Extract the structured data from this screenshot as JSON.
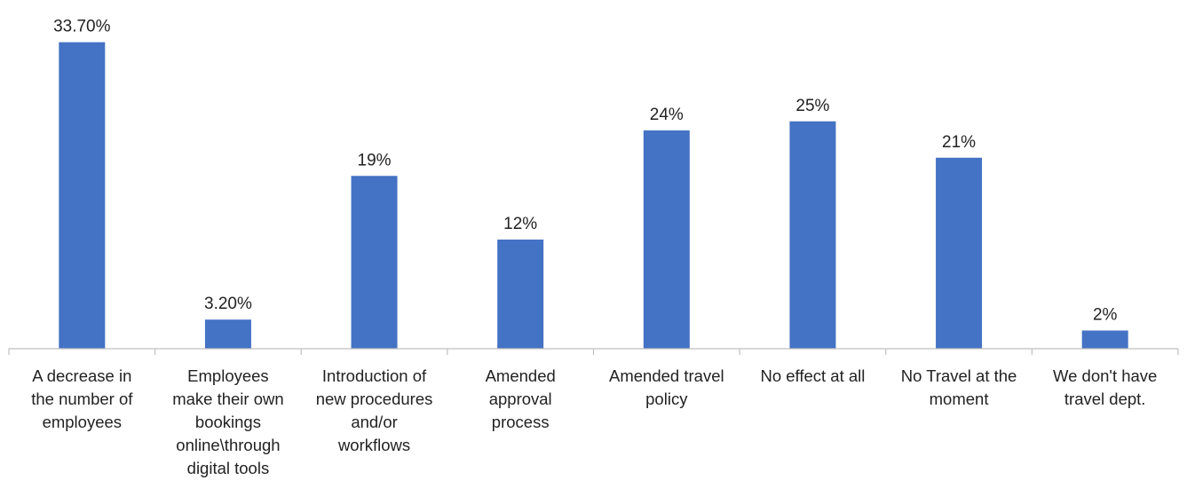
{
  "chart_data": {
    "type": "bar",
    "categories": [
      [
        "A decrease in",
        "the number of",
        "employees"
      ],
      [
        "Employees",
        "make their own",
        "bookings",
        "online\\through",
        "digital tools"
      ],
      [
        "Introduction of",
        "new procedures",
        "and/or",
        "workflows"
      ],
      [
        "Amended",
        "approval",
        "process"
      ],
      [
        "Amended travel",
        "policy"
      ],
      [
        "No effect at all"
      ],
      [
        "No Travel at the",
        "moment"
      ],
      [
        "We don't have",
        "travel dept."
      ]
    ],
    "values": [
      33.7,
      3.2,
      19,
      12,
      24,
      25,
      21,
      2
    ],
    "data_labels": [
      "33.70%",
      "3.20%",
      "19%",
      "12%",
      "24%",
      "25%",
      "21%",
      "2%"
    ],
    "title": "",
    "xlabel": "",
    "ylabel": "",
    "ylim": [
      0,
      35
    ],
    "grid": false,
    "legend": "none",
    "bar_color": "#4472C4",
    "axis_color": "#BFBFBF"
  }
}
